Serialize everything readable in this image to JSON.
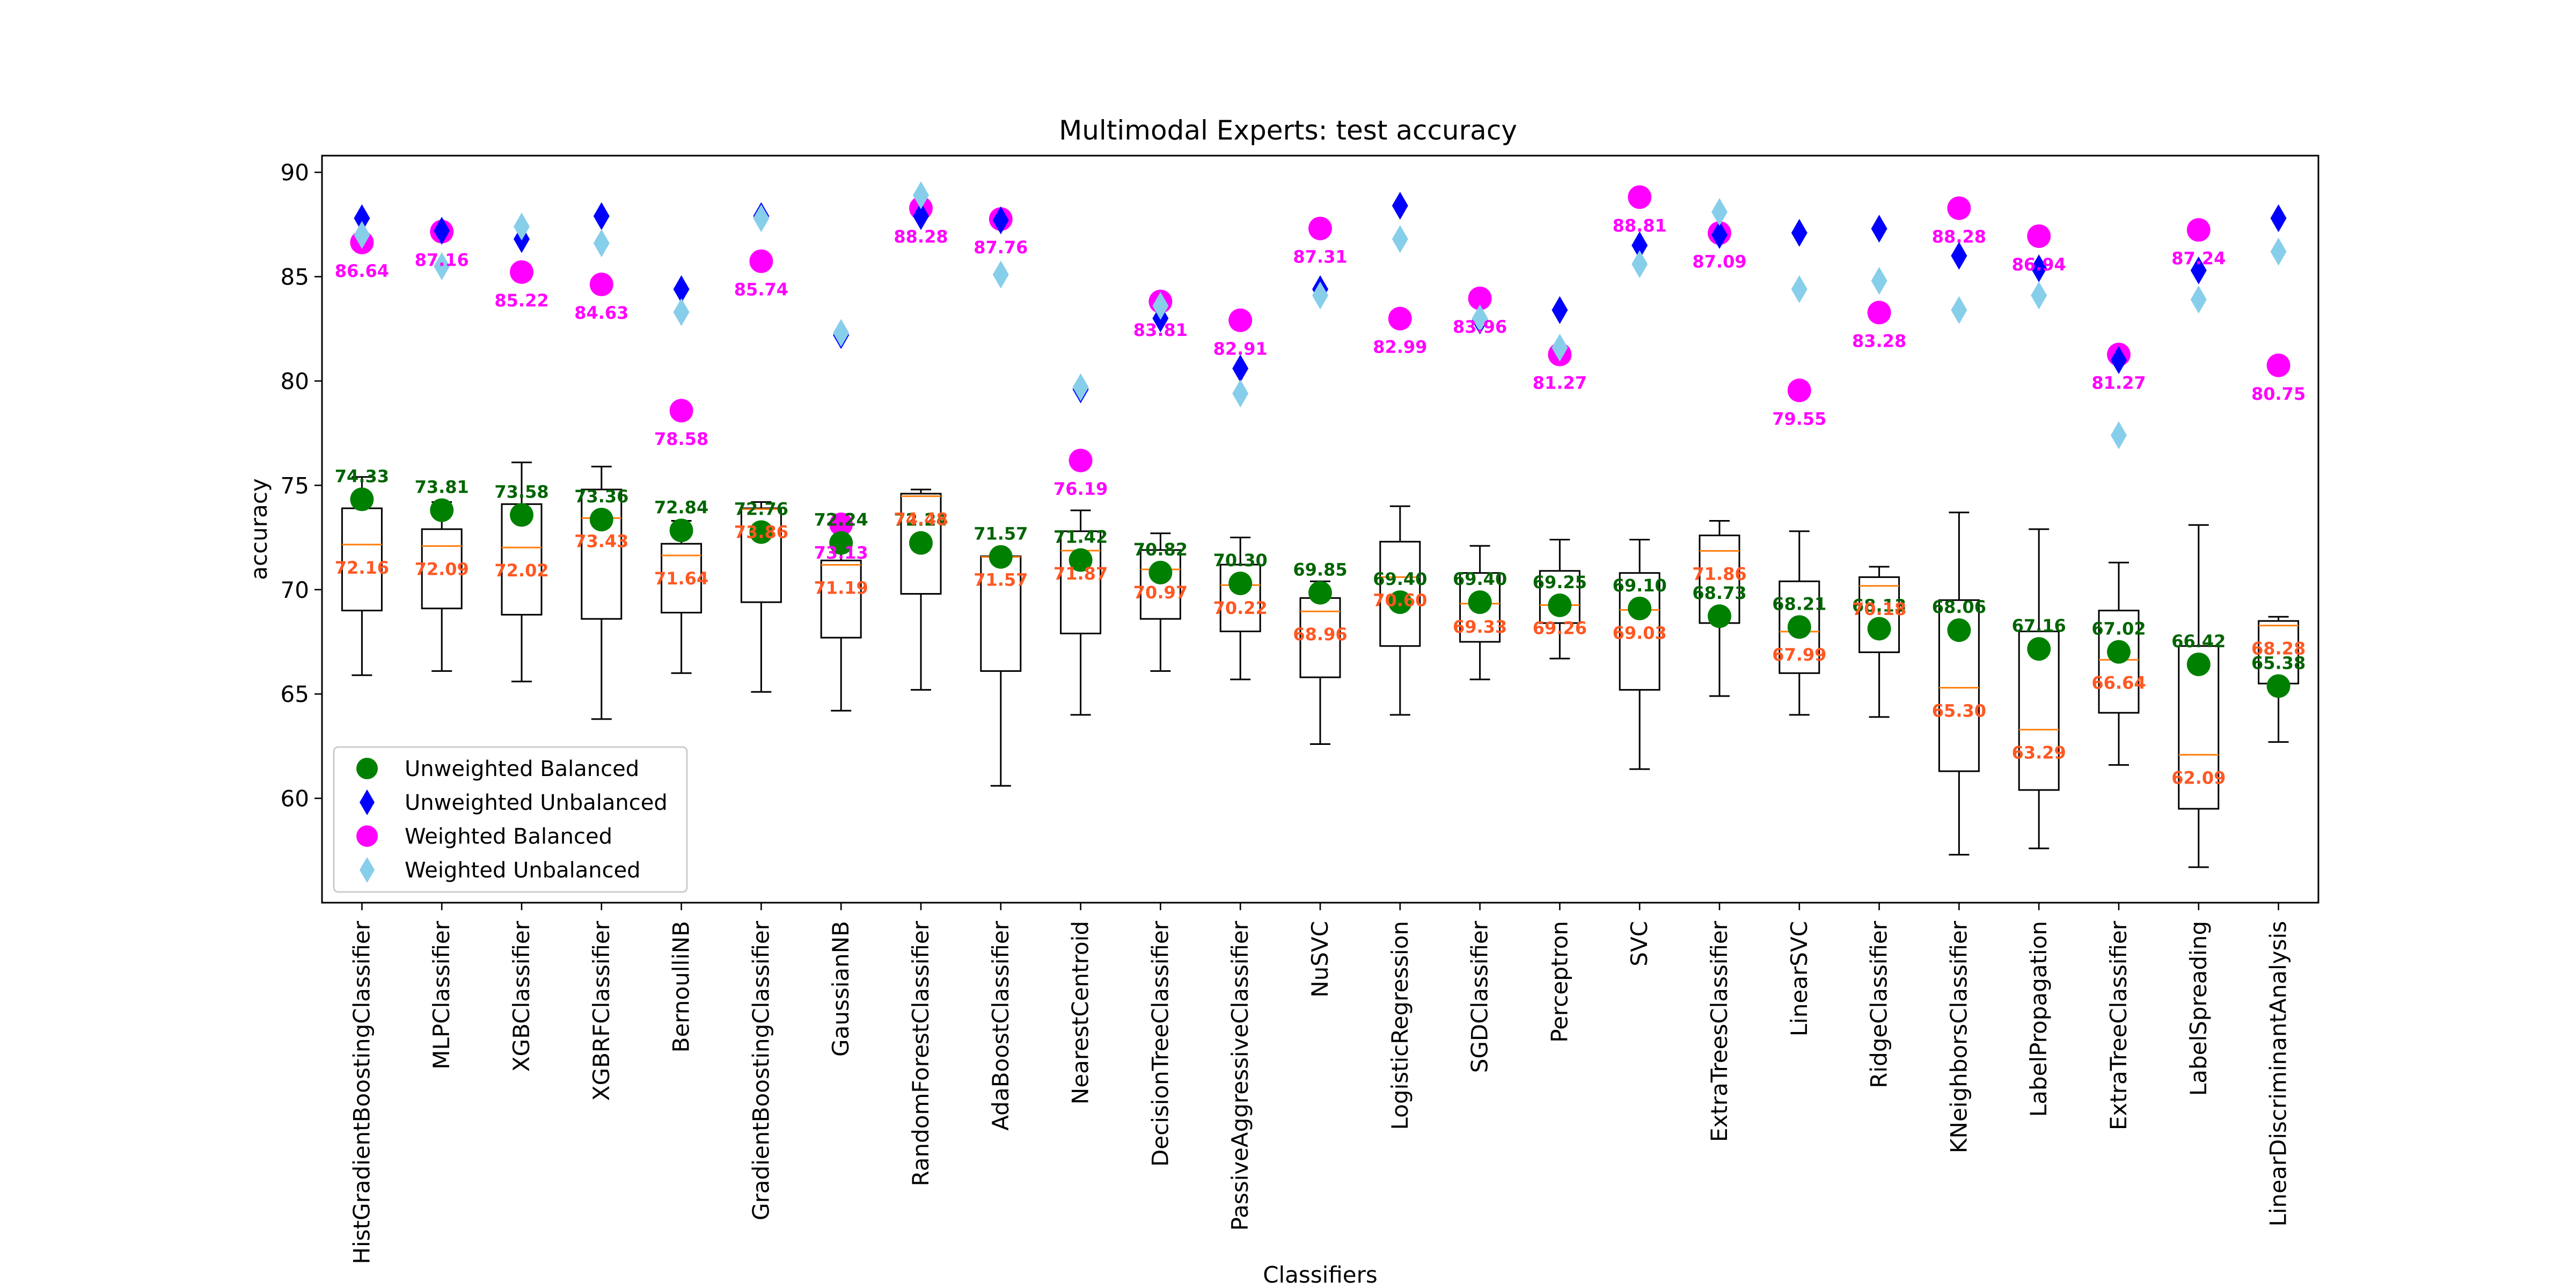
{
  "colors": {
    "unweighted_balanced": "#008000",
    "unweighted_balanced_label": "#006400",
    "unweighted_unbalanced": "#0000ff",
    "weighted_balanced": "#ff00ff",
    "weighted_unbalanced": "#87ceeb",
    "median": "#ff7f0e",
    "median_label": "#ff5722"
  },
  "chart_data": {
    "type": "box",
    "title": "Multimodal Experts: test accuracy",
    "xlabel": "Classifiers",
    "ylabel": "accuracy",
    "ylim": [
      55.0,
      90.8
    ],
    "yticks": [
      60,
      65,
      70,
      75,
      80,
      85,
      90
    ],
    "grid": false,
    "legend_placement": "lower left",
    "categories": [
      "HistGradientBoostingClassifier",
      "MLPClassifier",
      "XGBClassifier",
      "XGBRFClassifier",
      "BernoulliNB",
      "GradientBoostingClassifier",
      "GaussianNB",
      "RandomForestClassifier",
      "AdaBoostClassifier",
      "NearestCentroid",
      "DecisionTreeClassifier",
      "PassiveAggressiveClassifier",
      "NuSVC",
      "LogisticRegression",
      "SGDClassifier",
      "Perceptron",
      "SVC",
      "ExtraTreesClassifier",
      "LinearSVC",
      "RidgeClassifier",
      "KNeighborsClassifier",
      "LabelPropagation",
      "ExtraTreeClassifier",
      "LabelSpreading",
      "LinearDiscriminantAnalysis"
    ],
    "boxes": [
      {
        "whislo": 65.9,
        "q1": 69.0,
        "med": 72.16,
        "q3": 73.9,
        "whishi": 75.4
      },
      {
        "whislo": 66.1,
        "q1": 69.1,
        "med": 72.09,
        "q3": 72.9,
        "whishi": 74.2
      },
      {
        "whislo": 65.6,
        "q1": 68.8,
        "med": 72.02,
        "q3": 74.1,
        "whishi": 76.1
      },
      {
        "whislo": 63.8,
        "q1": 68.6,
        "med": 73.43,
        "q3": 74.8,
        "whishi": 75.9
      },
      {
        "whislo": 66.0,
        "q1": 68.9,
        "med": 71.64,
        "q3": 72.2,
        "whishi": 73.3
      },
      {
        "whislo": 65.1,
        "q1": 69.4,
        "med": 73.86,
        "q3": 73.9,
        "whishi": 74.2
      },
      {
        "whislo": 64.2,
        "q1": 67.7,
        "med": 71.19,
        "q3": 71.4,
        "whishi": 73.6
      },
      {
        "whislo": 65.2,
        "q1": 69.8,
        "med": 74.48,
        "q3": 74.6,
        "whishi": 74.8
      },
      {
        "whislo": 60.6,
        "q1": 66.1,
        "med": 71.57,
        "q3": 71.6,
        "whishi": 71.6
      },
      {
        "whislo": 64.0,
        "q1": 67.9,
        "med": 71.87,
        "q3": 72.8,
        "whishi": 73.8
      },
      {
        "whislo": 66.1,
        "q1": 68.6,
        "med": 70.97,
        "q3": 71.9,
        "whishi": 72.7
      },
      {
        "whislo": 65.7,
        "q1": 68.0,
        "med": 70.22,
        "q3": 71.2,
        "whishi": 72.5
      },
      {
        "whislo": 62.6,
        "q1": 65.8,
        "med": 68.96,
        "q3": 69.6,
        "whishi": 70.4
      },
      {
        "whislo": 64.0,
        "q1": 67.3,
        "med": 70.6,
        "q3": 72.3,
        "whishi": 74.0
      },
      {
        "whislo": 65.7,
        "q1": 67.5,
        "med": 69.33,
        "q3": 70.8,
        "whishi": 72.1
      },
      {
        "whislo": 66.7,
        "q1": 68.4,
        "med": 69.26,
        "q3": 70.9,
        "whishi": 72.4
      },
      {
        "whislo": 61.4,
        "q1": 65.2,
        "med": 69.03,
        "q3": 70.8,
        "whishi": 72.4
      },
      {
        "whislo": 64.9,
        "q1": 68.4,
        "med": 71.86,
        "q3": 72.6,
        "whishi": 73.3
      },
      {
        "whislo": 64.0,
        "q1": 66.0,
        "med": 67.99,
        "q3": 70.4,
        "whishi": 72.8
      },
      {
        "whislo": 63.9,
        "q1": 67.0,
        "med": 70.18,
        "q3": 70.6,
        "whishi": 71.1
      },
      {
        "whislo": 57.3,
        "q1": 61.3,
        "med": 65.3,
        "q3": 69.5,
        "whishi": 73.7
      },
      {
        "whislo": 57.6,
        "q1": 60.4,
        "med": 63.29,
        "q3": 68.0,
        "whishi": 72.9
      },
      {
        "whislo": 61.6,
        "q1": 64.1,
        "med": 66.64,
        "q3": 69.0,
        "whishi": 71.3
      },
      {
        "whislo": 56.7,
        "q1": 59.5,
        "med": 62.09,
        "q3": 67.3,
        "whishi": 73.1
      },
      {
        "whislo": 62.7,
        "q1": 65.5,
        "med": 68.28,
        "q3": 68.5,
        "whishi": 68.7
      }
    ],
    "median_labels": [
      "72.16",
      "72.09",
      "72.02",
      "73.43",
      "71.64",
      "73.86",
      "71.19",
      "74.48",
      "71.57",
      "71.87",
      "70.97",
      "70.22",
      "68.96",
      "70.60",
      "69.33",
      "69.26",
      "69.03",
      "71.86",
      "67.99",
      "70.18",
      "65.30",
      "63.29",
      "66.64",
      "62.09",
      "68.28"
    ],
    "series": [
      {
        "name": "Unweighted Balanced",
        "marker": "circle",
        "values": [
          74.33,
          73.81,
          73.58,
          73.36,
          72.84,
          72.76,
          72.24,
          72.24,
          71.57,
          71.42,
          70.82,
          70.3,
          69.85,
          69.4,
          69.4,
          69.25,
          69.1,
          68.73,
          68.21,
          68.13,
          68.06,
          67.16,
          67.02,
          66.42,
          65.38
        ]
      },
      {
        "name": "Unweighted Unbalanced",
        "marker": "diamond",
        "values": [
          87.8,
          87.2,
          86.8,
          87.9,
          84.4,
          87.9,
          82.2,
          87.9,
          87.7,
          79.6,
          83.0,
          80.6,
          84.4,
          88.4,
          82.9,
          83.4,
          86.5,
          87.0,
          87.1,
          87.3,
          86.0,
          85.4,
          81.0,
          85.3,
          87.8
        ]
      },
      {
        "name": "Weighted Balanced",
        "marker": "circle",
        "values": [
          86.64,
          87.16,
          85.22,
          84.63,
          78.58,
          85.74,
          73.13,
          88.28,
          87.76,
          76.19,
          83.81,
          82.91,
          87.31,
          82.99,
          83.96,
          81.27,
          88.81,
          87.09,
          79.55,
          83.28,
          88.28,
          86.94,
          81.27,
          87.24,
          80.75
        ]
      },
      {
        "name": "Weighted Unbalanced",
        "marker": "diamond",
        "values": [
          87.0,
          85.5,
          87.4,
          86.6,
          83.3,
          87.8,
          82.3,
          88.9,
          85.1,
          79.7,
          83.6,
          79.4,
          84.1,
          86.8,
          83.0,
          81.6,
          85.6,
          88.1,
          84.4,
          84.8,
          83.4,
          84.1,
          77.4,
          83.9,
          86.2
        ]
      }
    ],
    "labels": {
      "unweighted_balanced": [
        "74.33",
        "73.81",
        "73.58",
        "73.36",
        "72.84",
        "72.76",
        "72.24",
        "72.24",
        "71.57",
        "71.42",
        "70.82",
        "70.30",
        "69.85",
        "69.40",
        "69.40",
        "69.25",
        "69.10",
        "68.73",
        "68.21",
        "68.13",
        "68.06",
        "67.16",
        "67.02",
        "66.42",
        "65.38"
      ],
      "weighted_balanced": [
        "86.64",
        "87.16",
        "85.22",
        "84.63",
        "78.58",
        "85.74",
        "73.13",
        "88.28",
        "87.76",
        "76.19",
        "83.81",
        "82.91",
        "87.31",
        "82.99",
        "83.96",
        "81.27",
        "88.81",
        "87.09",
        "79.55",
        "83.28",
        "88.28",
        "86.94",
        "81.27",
        "87.24",
        "80.75"
      ]
    },
    "legend": [
      "Unweighted Balanced",
      "Unweighted Unbalanced",
      "Weighted Balanced",
      "Weighted Unbalanced"
    ]
  }
}
